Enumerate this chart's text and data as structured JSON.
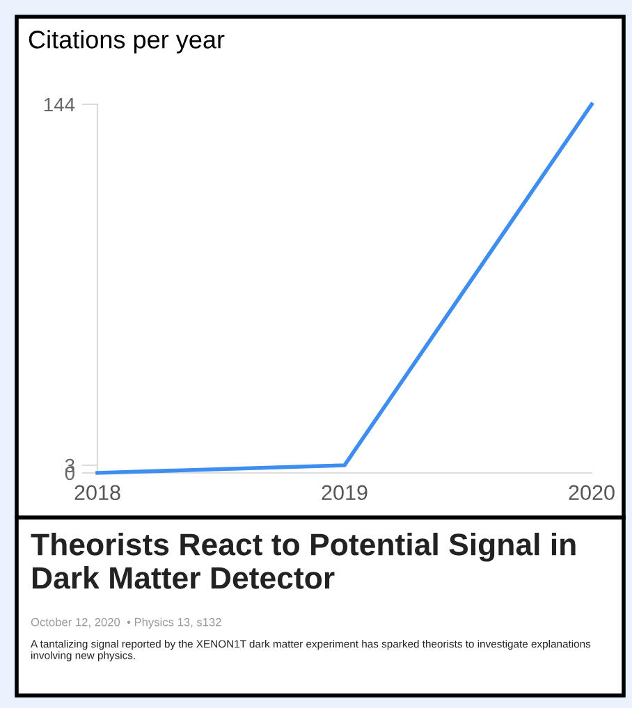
{
  "chart_data": {
    "type": "line",
    "title": "Citations per year",
    "categories": [
      "2018",
      "2019",
      "2020"
    ],
    "series": [
      {
        "color": "#3d8ef0",
        "values": [
          0,
          3,
          144
        ]
      }
    ],
    "ylim": [
      0,
      144
    ],
    "yticks": [
      0,
      3,
      144
    ],
    "grid": false,
    "marker": "none",
    "line_style": "solid",
    "annotations": [
      "Theorists React to Potential Signal in Dark Matter Detector",
      "October 12, 2020  • Physics 13, s132",
      "A tantalizing signal reported by the XENON1T dark matter experiment has sparked theorists to investigate explanations involving new physics."
    ]
  }
}
